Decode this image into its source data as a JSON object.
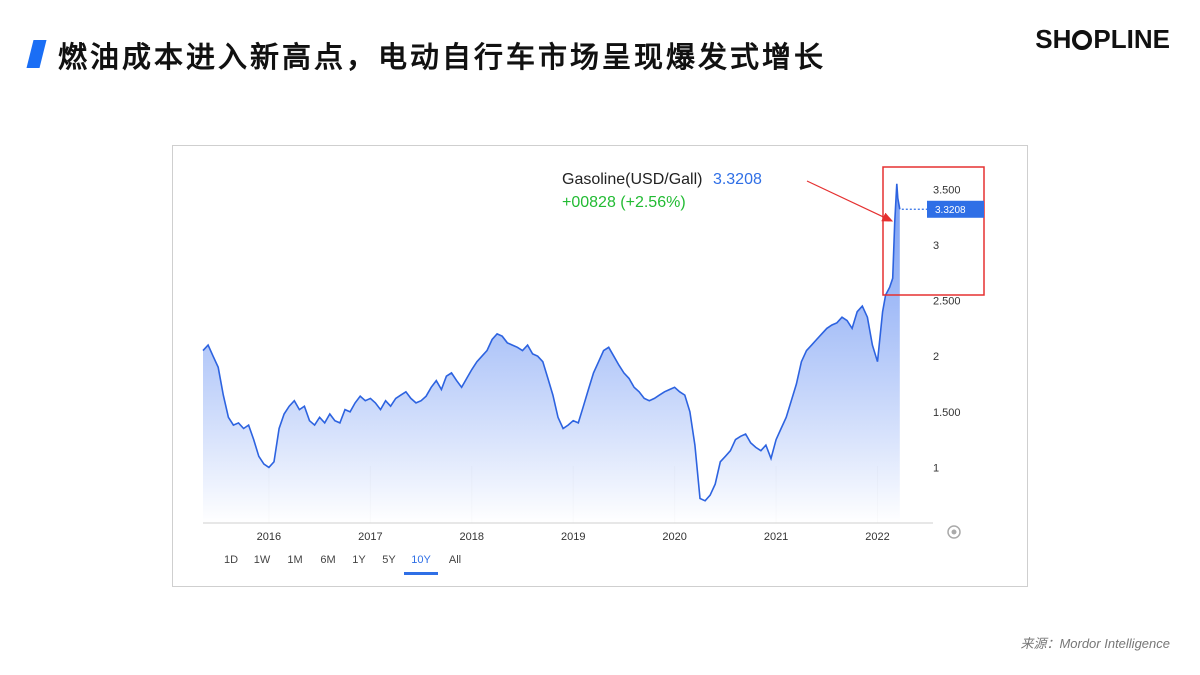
{
  "slide": {
    "title": "燃油成本进入新高点，电动自行车市场呈现爆发式增长",
    "logo_left": "SH",
    "logo_right": "PLINE",
    "source": "来源：Mordor Intelligence"
  },
  "colors": {
    "accent": "#1a6ef5",
    "line": "#2d63e0",
    "price_tag": "#2f6fe6",
    "change_up": "#22bb33",
    "highlight_box": "#e53030"
  },
  "chart_data": {
    "type": "area",
    "instrument": "Gasoline(USD/Gall)",
    "last_value": "3.3208",
    "change_text": "+00828 (+2.56%)",
    "price_tag": "3.3208",
    "yaxis": {
      "ticks": [
        "3.500",
        "3",
        "2.500",
        "2",
        "1.500",
        "1"
      ],
      "tick_values": [
        3.5,
        3.0,
        2.5,
        2.0,
        1.5,
        1.0
      ],
      "ylim": [
        0.5,
        3.62
      ]
    },
    "xaxis": {
      "ticks": [
        "2016",
        "2017",
        "2018",
        "2019",
        "2020",
        "2021",
        "2022"
      ],
      "tick_values": [
        2016,
        2017,
        2018,
        2019,
        2020,
        2021,
        2022
      ],
      "xlim": [
        2015.35,
        2022.35
      ]
    },
    "ranges": [
      "1D",
      "1W",
      "1M",
      "6M",
      "1Y",
      "5Y",
      "10Y",
      "All"
    ],
    "active_range": "10Y",
    "series": [
      {
        "x": [
          2015.35,
          2015.4,
          2015.45,
          2015.5,
          2015.55,
          2015.6,
          2015.65,
          2015.7,
          2015.75,
          2015.8,
          2015.85,
          2015.9,
          2015.95,
          2016.0,
          2016.05,
          2016.1,
          2016.15,
          2016.2,
          2016.25,
          2016.3,
          2016.35,
          2016.4,
          2016.45,
          2016.5,
          2016.55,
          2016.6,
          2016.65,
          2016.7,
          2016.75,
          2016.8,
          2016.85,
          2016.9,
          2016.95,
          2017.0,
          2017.05,
          2017.1,
          2017.15,
          2017.2,
          2017.25,
          2017.3,
          2017.35,
          2017.4,
          2017.45,
          2017.5,
          2017.55,
          2017.6,
          2017.65,
          2017.7,
          2017.75,
          2017.8,
          2017.85,
          2017.9,
          2017.95,
          2018.0,
          2018.05,
          2018.1,
          2018.15,
          2018.2,
          2018.25,
          2018.3,
          2018.35,
          2018.4,
          2018.45,
          2018.5,
          2018.55,
          2018.6,
          2018.65,
          2018.7,
          2018.75,
          2018.8,
          2018.85,
          2018.9,
          2018.95,
          2019.0,
          2019.05,
          2019.1,
          2019.15,
          2019.2,
          2019.25,
          2019.3,
          2019.35,
          2019.4,
          2019.45,
          2019.5,
          2019.55,
          2019.6,
          2019.65,
          2019.7,
          2019.75,
          2019.8,
          2019.85,
          2019.9,
          2019.95,
          2020.0,
          2020.05,
          2020.1,
          2020.15,
          2020.2,
          2020.25,
          2020.3,
          2020.35,
          2020.4,
          2020.45,
          2020.5,
          2020.55,
          2020.6,
          2020.65,
          2020.7,
          2020.75,
          2020.8,
          2020.85,
          2020.9,
          2020.95,
          2021.0,
          2021.05,
          2021.1,
          2021.15,
          2021.2,
          2021.25,
          2021.3,
          2021.35,
          2021.4,
          2021.45,
          2021.5,
          2021.55,
          2021.6,
          2021.65,
          2021.7,
          2021.75,
          2021.8,
          2021.85,
          2021.9,
          2021.95,
          2022.0,
          2022.05,
          2022.08,
          2022.12,
          2022.15,
          2022.17,
          2022.19,
          2022.2,
          2022.22
        ],
        "values": [
          2.05,
          2.1,
          2.0,
          1.9,
          1.65,
          1.45,
          1.38,
          1.4,
          1.35,
          1.38,
          1.25,
          1.1,
          1.03,
          1.0,
          1.05,
          1.35,
          1.48,
          1.55,
          1.6,
          1.52,
          1.55,
          1.42,
          1.38,
          1.45,
          1.4,
          1.48,
          1.42,
          1.4,
          1.52,
          1.5,
          1.58,
          1.64,
          1.6,
          1.62,
          1.58,
          1.52,
          1.6,
          1.55,
          1.62,
          1.65,
          1.68,
          1.62,
          1.58,
          1.6,
          1.64,
          1.72,
          1.78,
          1.7,
          1.82,
          1.85,
          1.78,
          1.72,
          1.8,
          1.88,
          1.95,
          2.0,
          2.05,
          2.15,
          2.2,
          2.18,
          2.12,
          2.1,
          2.08,
          2.05,
          2.1,
          2.02,
          2.0,
          1.95,
          1.8,
          1.65,
          1.45,
          1.35,
          1.38,
          1.42,
          1.4,
          1.55,
          1.7,
          1.85,
          1.95,
          2.05,
          2.08,
          2.0,
          1.92,
          1.85,
          1.8,
          1.72,
          1.68,
          1.62,
          1.6,
          1.62,
          1.65,
          1.68,
          1.7,
          1.72,
          1.68,
          1.65,
          1.5,
          1.2,
          0.72,
          0.7,
          0.75,
          0.85,
          1.05,
          1.1,
          1.15,
          1.25,
          1.28,
          1.3,
          1.22,
          1.18,
          1.15,
          1.2,
          1.08,
          1.25,
          1.35,
          1.45,
          1.6,
          1.75,
          1.95,
          2.05,
          2.1,
          2.15,
          2.2,
          2.25,
          2.28,
          2.3,
          2.35,
          2.32,
          2.25,
          2.4,
          2.45,
          2.35,
          2.1,
          1.95,
          2.4,
          2.55,
          2.62,
          2.7,
          3.2,
          3.55,
          3.42,
          3.3208
        ]
      }
    ]
  }
}
